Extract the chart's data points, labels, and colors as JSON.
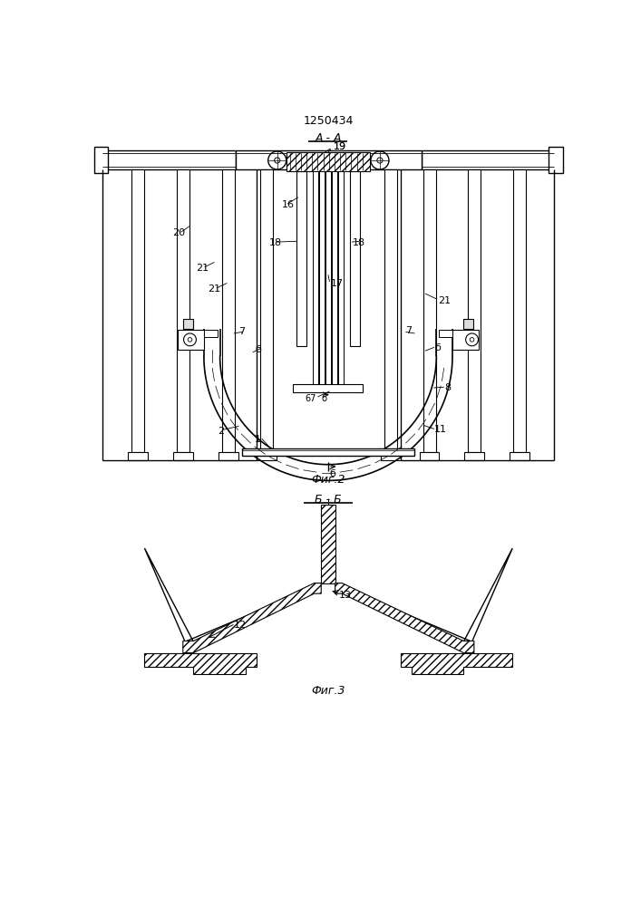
{
  "title": "1250434",
  "fig2_label": "Фиг.2",
  "fig3_label": "Фиг.3",
  "section_aa": "А - А",
  "section_bb": "Б - Б",
  "section_b": "б",
  "bg_color": "#ffffff",
  "line_color": "#000000"
}
